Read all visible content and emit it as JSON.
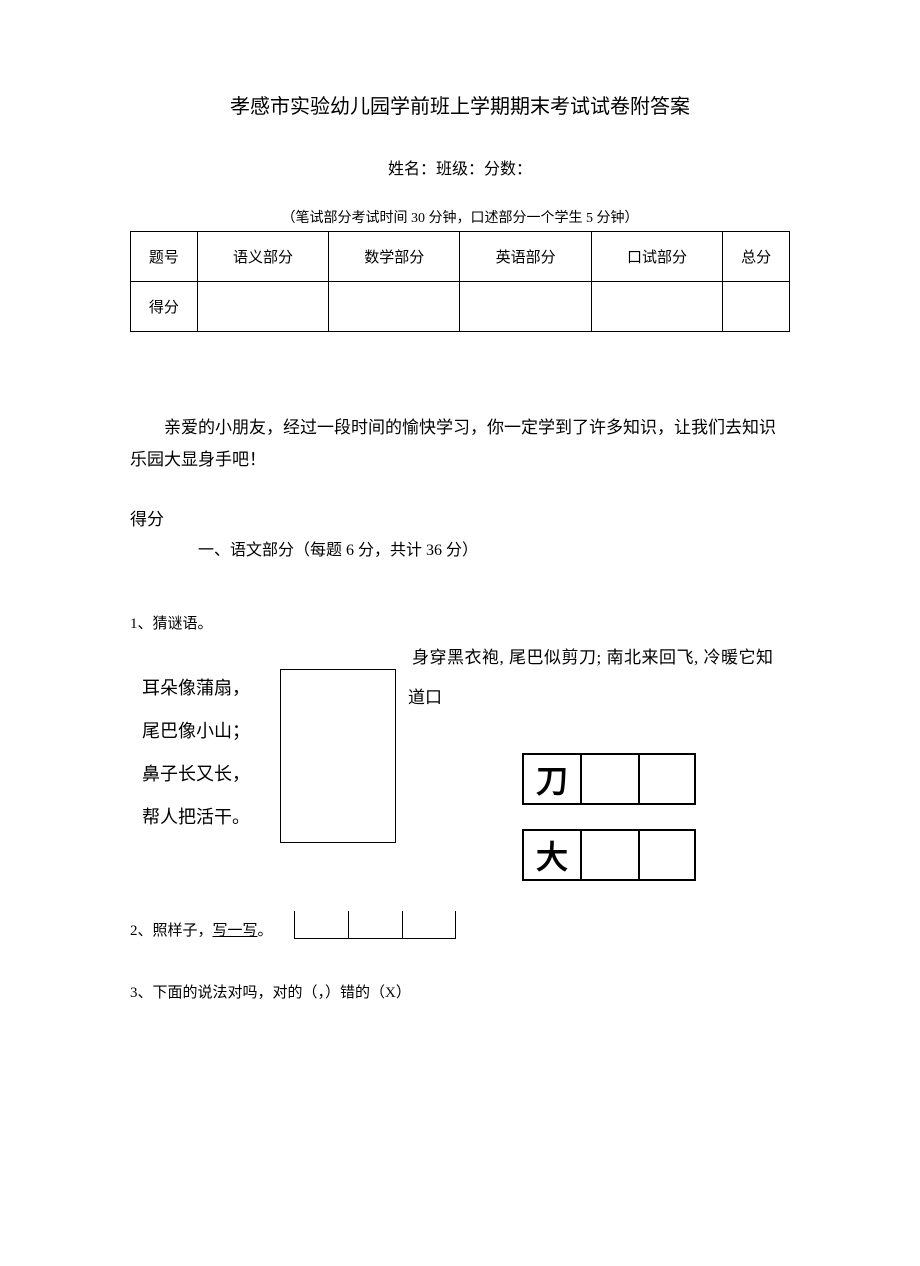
{
  "title": "孝感市实验幼儿园学前班上学期期末考试试卷附答案",
  "info": {
    "name_label": "姓名：",
    "class_label": "班级：",
    "score_label": "分数："
  },
  "exam_note": "（笔试部分考试时间 30 分钟，口述部分一个学生 5 分钟）",
  "score_table": {
    "headers": [
      "题号",
      "语义部分",
      "数学部分",
      "英语部分",
      "口试部分",
      "总分"
    ],
    "row_label": "得分"
  },
  "intro": "亲爱的小朋友，经过一段时间的愉快学习，你一定学到了许多知识，让我们去知识乐园大显身手吧！",
  "defen": "得分",
  "section1": "一、语文部分（每题 6 分，共计 36 分）",
  "q1": {
    "label": "1、猜谜语。",
    "left_lines": [
      "耳朵像蒲扇，",
      "尾巴像小山；",
      "鼻子长又长，",
      "帮人把活干。"
    ],
    "right_text": "身穿黑衣袍, 尾巴似剪刀; 南北来回飞, 冷暖它知",
    "right_text2": "道口"
  },
  "char_samples": {
    "dao": "刀",
    "da": "大"
  },
  "q2": {
    "label": "2、照样子，",
    "label2": "写一写"
  },
  "q3": "3、下面的说法对吗，对的（，）错的（X）",
  "colors": {
    "text": "#000000",
    "background": "#ffffff",
    "border": "#000000"
  },
  "typography": {
    "title_fontsize": 20,
    "body_fontsize": 16,
    "small_fontsize": 14,
    "font_family_serif": "SimSun",
    "font_family_sans": "SimHei"
  }
}
